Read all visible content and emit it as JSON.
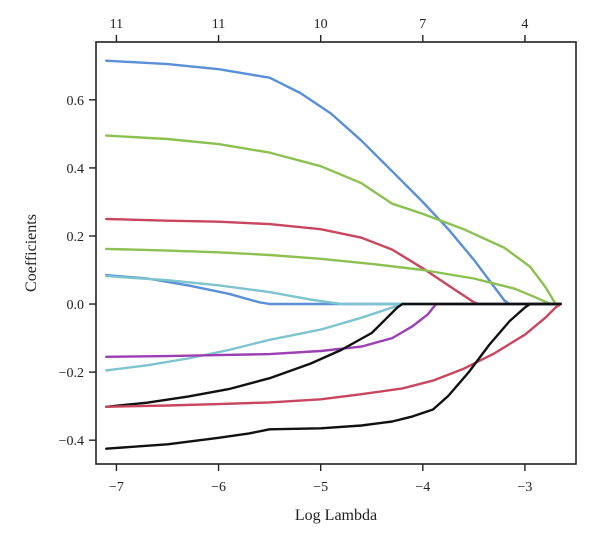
{
  "chart_data": {
    "type": "line",
    "title": "",
    "xlabel": "Log Lambda",
    "ylabel": "Coefficients",
    "xlim": [
      -7.2,
      -2.5
    ],
    "ylim": [
      -0.47,
      0.77
    ],
    "x_ticks": [
      -7,
      -6,
      -5,
      -4,
      -3
    ],
    "x_tick_labels": [
      "−7",
      "−6",
      "−5",
      "−4",
      "−3"
    ],
    "y_ticks": [
      -0.4,
      -0.2,
      0.0,
      0.2,
      0.4,
      0.6
    ],
    "y_tick_labels": [
      "−0.4",
      "−0.2",
      "0.0",
      "0.2",
      "0.4",
      "0.6"
    ],
    "top_axis": {
      "ticks": [
        -7,
        -6,
        -5,
        -4,
        -3
      ],
      "labels": [
        "11",
        "11",
        "10",
        "7",
        "4"
      ]
    },
    "grid": false,
    "legend": "none",
    "series": [
      {
        "color": "#5b8fd6",
        "points": [
          [
            -7.1,
            0.715
          ],
          [
            -6.5,
            0.705
          ],
          [
            -6.0,
            0.69
          ],
          [
            -5.5,
            0.665
          ],
          [
            -5.2,
            0.62
          ],
          [
            -4.9,
            0.56
          ],
          [
            -4.6,
            0.48
          ],
          [
            -4.3,
            0.39
          ],
          [
            -4.0,
            0.3
          ],
          [
            -3.75,
            0.22
          ],
          [
            -3.5,
            0.13
          ],
          [
            -3.3,
            0.05
          ],
          [
            -3.2,
            0.01
          ],
          [
            -3.15,
            0.0
          ],
          [
            -2.65,
            0.0
          ]
        ]
      },
      {
        "color": "#8cc152",
        "points": [
          [
            -7.1,
            0.495
          ],
          [
            -6.5,
            0.485
          ],
          [
            -6.0,
            0.47
          ],
          [
            -5.5,
            0.445
          ],
          [
            -5.0,
            0.405
          ],
          [
            -4.6,
            0.355
          ],
          [
            -4.3,
            0.295
          ],
          [
            -4.0,
            0.265
          ],
          [
            -3.6,
            0.22
          ],
          [
            -3.2,
            0.165
          ],
          [
            -2.95,
            0.11
          ],
          [
            -2.8,
            0.05
          ],
          [
            -2.7,
            0.0
          ],
          [
            -2.65,
            0.0
          ]
        ]
      },
      {
        "color": "#c9475e",
        "points": [
          [
            -7.1,
            0.25
          ],
          [
            -6.5,
            0.245
          ],
          [
            -6.0,
            0.242
          ],
          [
            -5.5,
            0.235
          ],
          [
            -5.0,
            0.22
          ],
          [
            -4.6,
            0.195
          ],
          [
            -4.3,
            0.16
          ],
          [
            -4.0,
            0.105
          ],
          [
            -3.7,
            0.045
          ],
          [
            -3.5,
            0.005
          ],
          [
            -3.45,
            0.0
          ],
          [
            -2.65,
            0.0
          ]
        ]
      },
      {
        "color": "#8cc152",
        "points": [
          [
            -7.1,
            0.162
          ],
          [
            -6.5,
            0.157
          ],
          [
            -6.0,
            0.152
          ],
          [
            -5.5,
            0.144
          ],
          [
            -5.0,
            0.133
          ],
          [
            -4.5,
            0.118
          ],
          [
            -4.0,
            0.1
          ],
          [
            -3.5,
            0.075
          ],
          [
            -3.1,
            0.045
          ],
          [
            -2.9,
            0.02
          ],
          [
            -2.75,
            0.0
          ],
          [
            -2.65,
            0.0
          ]
        ]
      },
      {
        "color": "#5b8fd6",
        "points": [
          [
            -7.1,
            0.085
          ],
          [
            -6.7,
            0.075
          ],
          [
            -6.3,
            0.055
          ],
          [
            -5.9,
            0.03
          ],
          [
            -5.6,
            0.005
          ],
          [
            -5.5,
            0.0
          ],
          [
            -2.65,
            0.0
          ]
        ]
      },
      {
        "color": "#7dc4cf",
        "points": [
          [
            -7.1,
            0.082
          ],
          [
            -6.5,
            0.07
          ],
          [
            -6.0,
            0.055
          ],
          [
            -5.5,
            0.035
          ],
          [
            -5.1,
            0.013
          ],
          [
            -4.8,
            0.0
          ],
          [
            -2.65,
            0.0
          ]
        ]
      },
      {
        "color": "#7dc4cf",
        "points": [
          [
            -7.1,
            -0.195
          ],
          [
            -6.7,
            -0.18
          ],
          [
            -6.3,
            -0.16
          ],
          [
            -5.9,
            -0.135
          ],
          [
            -5.5,
            -0.105
          ],
          [
            -5.0,
            -0.075
          ],
          [
            -4.6,
            -0.04
          ],
          [
            -4.3,
            -0.01
          ],
          [
            -4.2,
            0.0
          ],
          [
            -2.65,
            0.0
          ]
        ]
      },
      {
        "color": "#9b3fb2",
        "points": [
          [
            -7.1,
            -0.155
          ],
          [
            -6.5,
            -0.153
          ],
          [
            -6.0,
            -0.15
          ],
          [
            -5.5,
            -0.147
          ],
          [
            -5.0,
            -0.138
          ],
          [
            -4.6,
            -0.125
          ],
          [
            -4.3,
            -0.1
          ],
          [
            -4.1,
            -0.065
          ],
          [
            -3.95,
            -0.03
          ],
          [
            -3.87,
            0.0
          ],
          [
            -2.65,
            0.0
          ]
        ]
      },
      {
        "color": "#111111",
        "points": [
          [
            -7.1,
            -0.302
          ],
          [
            -6.7,
            -0.29
          ],
          [
            -6.3,
            -0.272
          ],
          [
            -5.9,
            -0.25
          ],
          [
            -5.5,
            -0.218
          ],
          [
            -5.1,
            -0.175
          ],
          [
            -4.8,
            -0.135
          ],
          [
            -4.5,
            -0.085
          ],
          [
            -4.35,
            -0.04
          ],
          [
            -4.25,
            -0.01
          ],
          [
            -4.2,
            0.0
          ],
          [
            -2.65,
            0.0
          ]
        ]
      },
      {
        "color": "#c9475e",
        "points": [
          [
            -7.1,
            -0.302
          ],
          [
            -6.5,
            -0.298
          ],
          [
            -6.0,
            -0.294
          ],
          [
            -5.5,
            -0.289
          ],
          [
            -5.0,
            -0.28
          ],
          [
            -4.6,
            -0.265
          ],
          [
            -4.2,
            -0.248
          ],
          [
            -3.9,
            -0.225
          ],
          [
            -3.6,
            -0.19
          ],
          [
            -3.3,
            -0.145
          ],
          [
            -3.0,
            -0.09
          ],
          [
            -2.8,
            -0.04
          ],
          [
            -2.7,
            -0.01
          ],
          [
            -2.65,
            0.0
          ]
        ]
      },
      {
        "color": "#111111",
        "points": [
          [
            -7.1,
            -0.425
          ],
          [
            -6.5,
            -0.412
          ],
          [
            -6.0,
            -0.393
          ],
          [
            -5.7,
            -0.38
          ],
          [
            -5.5,
            -0.368
          ],
          [
            -5.0,
            -0.365
          ],
          [
            -4.6,
            -0.357
          ],
          [
            -4.3,
            -0.345
          ],
          [
            -4.1,
            -0.33
          ],
          [
            -3.9,
            -0.31
          ],
          [
            -3.75,
            -0.27
          ],
          [
            -3.55,
            -0.2
          ],
          [
            -3.35,
            -0.12
          ],
          [
            -3.15,
            -0.05
          ],
          [
            -3.0,
            -0.01
          ],
          [
            -2.95,
            0.0
          ],
          [
            -2.65,
            0.0
          ]
        ]
      }
    ]
  }
}
